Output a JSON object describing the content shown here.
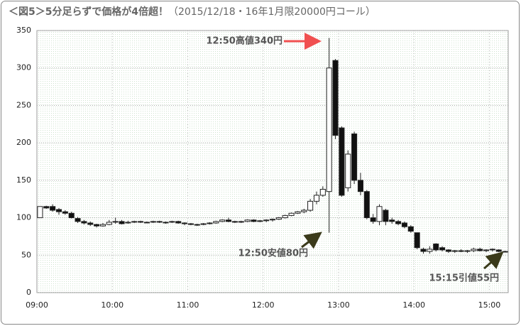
{
  "chart_data": {
    "type": "candlestick",
    "title": "＜図5＞5分足らずで価格が4倍超！",
    "subtitle": "（2015/12/18・16年1月限20000円コール）",
    "annotations": [
      "12:50高値340円",
      "12:50安値80円",
      "15:15引値55円"
    ],
    "categories": [
      "09:00",
      null,
      null,
      null,
      null,
      null,
      null,
      null,
      null,
      null,
      null,
      null,
      "10:00",
      null,
      null,
      null,
      null,
      null,
      null,
      null,
      null,
      null,
      null,
      null,
      "11:00",
      null,
      null,
      null,
      null,
      null,
      null,
      null,
      null,
      null,
      null,
      null,
      "12:00",
      null,
      null,
      null,
      null,
      null,
      null,
      null,
      null,
      null,
      null,
      null,
      "13:00",
      null,
      null,
      null,
      null,
      null,
      null,
      null,
      null,
      null,
      null,
      null,
      "14:00",
      null,
      null,
      null,
      null,
      null,
      null,
      null,
      null,
      null,
      null,
      null,
      "15:00",
      null,
      null
    ],
    "open": [
      100,
      115,
      115,
      111,
      108,
      106,
      99,
      95,
      93,
      91,
      89,
      91,
      94,
      95,
      93,
      94,
      95,
      94,
      94,
      95,
      94,
      94,
      95,
      93,
      92,
      91,
      91,
      92,
      93,
      95,
      97,
      95,
      94,
      95,
      97,
      95,
      96,
      97,
      98,
      100,
      103,
      106,
      108,
      110,
      122,
      130,
      135,
      310,
      220,
      140,
      212,
      150,
      135,
      100,
      95,
      110,
      97,
      95,
      93,
      88,
      80,
      58,
      55,
      65,
      60,
      57,
      55,
      56,
      55,
      56,
      58,
      56,
      58,
      57,
      55
    ],
    "high": [
      115,
      116,
      118,
      113,
      110,
      108,
      101,
      97,
      95,
      92,
      93,
      97,
      100,
      97,
      96,
      96,
      96,
      95,
      96,
      96,
      95,
      96,
      96,
      94,
      93,
      92,
      93,
      94,
      96,
      98,
      100,
      96,
      96,
      98,
      98,
      97,
      98,
      99,
      101,
      104,
      107,
      109,
      112,
      125,
      135,
      142,
      340,
      312,
      222,
      190,
      215,
      160,
      137,
      105,
      118,
      112,
      100,
      97,
      95,
      90,
      80,
      60,
      62,
      66,
      62,
      58,
      57,
      58,
      57,
      60,
      60,
      58,
      59,
      58,
      56
    ],
    "low": [
      100,
      112,
      108,
      104,
      104,
      99,
      93,
      91,
      89,
      87,
      88,
      90,
      92,
      91,
      92,
      93,
      93,
      93,
      93,
      93,
      92,
      93,
      92,
      90,
      90,
      89,
      90,
      91,
      92,
      94,
      94,
      93,
      93,
      94,
      94,
      94,
      94,
      95,
      97,
      99,
      102,
      105,
      106,
      108,
      118,
      128,
      80,
      205,
      128,
      135,
      145,
      130,
      98,
      92,
      90,
      90,
      92,
      90,
      86,
      80,
      58,
      52,
      52,
      55,
      55,
      53,
      53,
      54,
      53,
      54,
      55,
      54,
      55,
      54,
      54
    ],
    "close": [
      115,
      113,
      110,
      108,
      106,
      100,
      95,
      93,
      91,
      89,
      91,
      94,
      95,
      92,
      94,
      95,
      94,
      94,
      95,
      94,
      94,
      95,
      93,
      92,
      91,
      91,
      92,
      93,
      95,
      97,
      95,
      94,
      95,
      97,
      95,
      96,
      97,
      98,
      100,
      103,
      106,
      108,
      110,
      122,
      130,
      138,
      300,
      210,
      130,
      185,
      150,
      135,
      100,
      95,
      115,
      95,
      95,
      92,
      88,
      82,
      60,
      55,
      58,
      57,
      57,
      55,
      56,
      55,
      56,
      58,
      56,
      57,
      57,
      55,
      55
    ],
    "up_color": "#ffffff",
    "down_color": "#111111",
    "ylim": [
      0,
      350
    ],
    "yticks": [
      0,
      50,
      100,
      150,
      200,
      250,
      300,
      350
    ],
    "grid": true
  }
}
